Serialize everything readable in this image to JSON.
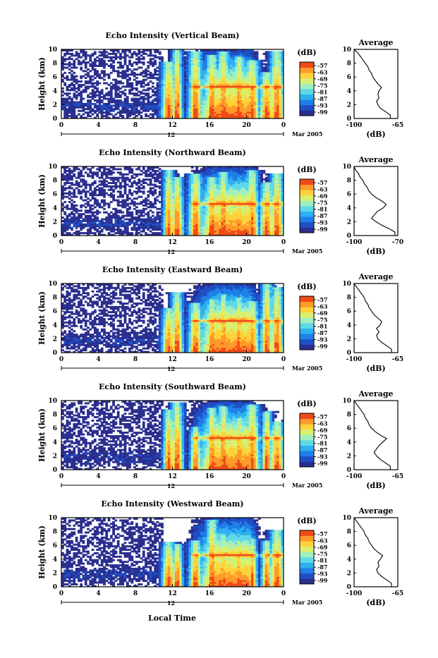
{
  "figure": {
    "xlabel_bottom": "Local Time",
    "date_label": "Mar 2005",
    "avg_title": "Average",
    "avg_xlabel": "(dB)",
    "cbar_title": "(dB)",
    "cbar_ticks": [
      "-57",
      "-63",
      "-69",
      "-75",
      "-81",
      "-87",
      "-93",
      "-99"
    ],
    "time_ticks": [
      "0",
      "4",
      "8",
      "12",
      "16",
      "20",
      "0"
    ],
    "date_marker": "12",
    "height_ticks": [
      "0",
      "2",
      "4",
      "6",
      "8",
      "10"
    ],
    "ylabel": "Height (km)"
  },
  "colors": {
    "palette": [
      "#2b2f8f",
      "#1f4fc4",
      "#1f7fe8",
      "#2fb0f0",
      "#5fd8e8",
      "#9ff0c0",
      "#d8f070",
      "#ffd23a",
      "#ff9a2a",
      "#f04a1a"
    ]
  },
  "chart_data": [
    {
      "type": "heatmap",
      "title": "Echo Intensity (Vertical Beam)",
      "xlabel": "Local Time",
      "ylabel": "Height (km)",
      "xlim": [
        0,
        24
      ],
      "ylim": [
        0,
        10
      ],
      "zlim": [
        -99,
        -57
      ],
      "average": {
        "type": "line",
        "title": "Average",
        "xlabel": "(dB)",
        "xlim": [
          -100,
          -65
        ],
        "xticks": [
          "-100",
          "-65"
        ],
        "ylim": [
          0,
          10
        ],
        "height": [
          0.5,
          1,
          1.5,
          2,
          2.5,
          3,
          3.5,
          4,
          4.5,
          5,
          5.5,
          6,
          6.5,
          7,
          7.5,
          8,
          8.5,
          9,
          9.5,
          10
        ],
        "values": [
          -71,
          -75,
          -79,
          -81,
          -82,
          -80,
          -81,
          -80,
          -78,
          -81,
          -83,
          -85,
          -86,
          -88,
          -89,
          -91,
          -93,
          -95,
          -97,
          -100
        ]
      }
    },
    {
      "type": "heatmap",
      "title": "Echo Intensity (Northward Beam)",
      "xlabel": "Local Time",
      "ylabel": "Height (km)",
      "xlim": [
        0,
        24
      ],
      "ylim": [
        0,
        10
      ],
      "zlim": [
        -99,
        -57
      ],
      "average": {
        "type": "line",
        "title": "Average",
        "xlabel": "(dB)",
        "xlim": [
          -100,
          -70
        ],
        "xticks": [
          "-100",
          "-70"
        ],
        "ylim": [
          0,
          10
        ],
        "height": [
          0.5,
          1,
          1.5,
          2,
          2.5,
          3,
          3.5,
          4,
          4.5,
          5,
          5.5,
          6,
          6.5,
          7,
          7.5,
          8,
          8.5,
          9,
          9.5,
          10
        ],
        "values": [
          -72,
          -76,
          -81,
          -85,
          -88,
          -86,
          -84,
          -80,
          -78,
          -81,
          -85,
          -88,
          -90,
          -91,
          -93,
          -94,
          -96,
          -97,
          -99,
          -100
        ]
      }
    },
    {
      "type": "heatmap",
      "title": "Echo Intensity (Eastward Beam)",
      "xlabel": "Local Time",
      "ylabel": "Height (km)",
      "xlim": [
        0,
        24
      ],
      "ylim": [
        0,
        10
      ],
      "zlim": [
        -99,
        -57
      ],
      "average": {
        "type": "line",
        "title": "Average",
        "xlabel": "(dB)",
        "xlim": [
          -100,
          -65
        ],
        "xticks": [
          "-100",
          "-65"
        ],
        "ylim": [
          0,
          10
        ],
        "height": [
          0.5,
          1,
          1.5,
          2,
          2.5,
          3,
          3.5,
          4,
          4.5,
          5,
          5.5,
          6,
          6.5,
          7,
          7.5,
          8,
          8.5,
          9,
          9.5,
          10
        ],
        "values": [
          -70,
          -74,
          -78,
          -81,
          -82,
          -80,
          -82,
          -79,
          -78,
          -81,
          -84,
          -86,
          -88,
          -89,
          -91,
          -92,
          -94,
          -96,
          -98,
          -100
        ]
      }
    },
    {
      "type": "heatmap",
      "title": "Echo Intensity (Southward Beam)",
      "xlabel": "Local Time",
      "ylabel": "Height (km)",
      "xlim": [
        0,
        24
      ],
      "ylim": [
        0,
        10
      ],
      "zlim": [
        -99,
        -57
      ],
      "average": {
        "type": "line",
        "title": "Average",
        "xlabel": "(dB)",
        "xlim": [
          -100,
          -65
        ],
        "xticks": [
          "-100",
          "-65"
        ],
        "ylim": [
          0,
          10
        ],
        "height": [
          0.5,
          1,
          1.5,
          2,
          2.5,
          3,
          3.5,
          4,
          4.5,
          5,
          5.5,
          6,
          6.5,
          7,
          7.5,
          8,
          8.5,
          9,
          9.5,
          10
        ],
        "values": [
          -71,
          -75,
          -79,
          -82,
          -84,
          -82,
          -80,
          -77,
          -74,
          -79,
          -83,
          -86,
          -88,
          -89,
          -91,
          -92,
          -94,
          -96,
          -98,
          -100
        ]
      }
    },
    {
      "type": "heatmap",
      "title": "Echo Intensity (Westward Beam)",
      "xlabel": "Local Time",
      "ylabel": "Height (km)",
      "xlim": [
        0,
        24
      ],
      "ylim": [
        0,
        10
      ],
      "zlim": [
        -99,
        -57
      ],
      "average": {
        "type": "line",
        "title": "Average",
        "xlabel": "(dB)",
        "xlim": [
          -100,
          -65
        ],
        "xticks": [
          "-100",
          "-65"
        ],
        "ylim": [
          0,
          10
        ],
        "height": [
          0.5,
          1,
          1.5,
          2,
          2.5,
          3,
          3.5,
          4,
          4.5,
          5,
          5.5,
          6,
          6.5,
          7,
          7.5,
          8,
          8.5,
          9,
          9.5,
          10
        ],
        "values": [
          -70,
          -74,
          -78,
          -81,
          -82,
          -80,
          -81,
          -79,
          -77,
          -81,
          -84,
          -86,
          -88,
          -89,
          -91,
          -92,
          -94,
          -96,
          -98,
          -100
        ]
      }
    }
  ]
}
